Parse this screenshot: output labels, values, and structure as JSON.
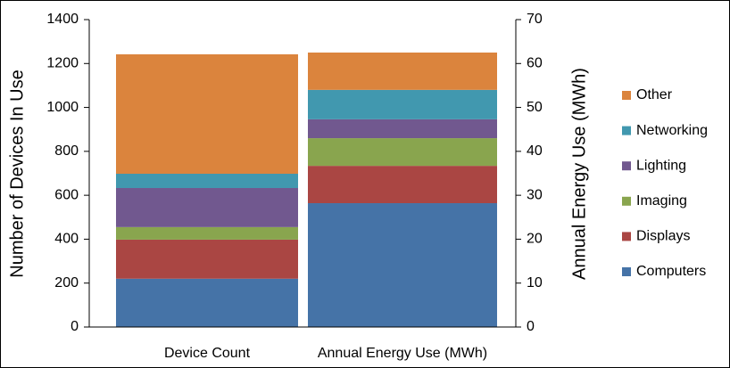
{
  "chart_data": {
    "type": "stacked_bar",
    "categories": [
      "Device Count",
      "Annual Energy Use (MWh)"
    ],
    "category_axes": [
      "y",
      "y2"
    ],
    "ylabel": "Number of Devices In Use",
    "y2label": "Annual Energy Use (MWh)",
    "ylim": [
      0,
      1400
    ],
    "yticks": [
      0,
      200,
      400,
      600,
      800,
      1000,
      1200,
      1400
    ],
    "y2lim": [
      0,
      70
    ],
    "y2ticks": [
      0,
      10,
      20,
      30,
      40,
      50,
      60,
      70
    ],
    "legend": "right",
    "series": [
      {
        "name": "Computers",
        "color": "#4573a7",
        "values": [
          220,
          28.2
        ]
      },
      {
        "name": "Displays",
        "color": "#aa4643",
        "values": [
          178,
          8.5
        ]
      },
      {
        "name": "Imaging",
        "color": "#89a54e",
        "values": [
          57,
          6.3
        ]
      },
      {
        "name": "Lighting",
        "color": "#71588f",
        "values": [
          178,
          4.3
        ]
      },
      {
        "name": "Networking",
        "color": "#4198af",
        "values": [
          65,
          6.7
        ]
      },
      {
        "name": "Other",
        "color": "#db843d",
        "values": [
          544,
          8.5
        ]
      }
    ]
  }
}
